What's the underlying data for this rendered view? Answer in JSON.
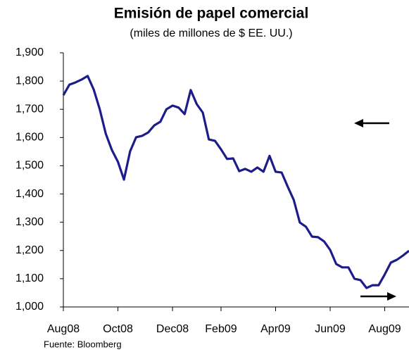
{
  "chart_data": {
    "type": "line",
    "title": "Emisión de papel comercial",
    "subtitle": "(miles de millones de $ EE. UU.)",
    "source": "Fuente: Bloomberg",
    "categories": [
      "Aug08",
      null,
      null,
      null,
      null,
      null,
      null,
      null,
      null,
      "Oct08",
      null,
      null,
      null,
      null,
      null,
      null,
      null,
      null,
      "Dec08",
      null,
      null,
      null,
      null,
      null,
      null,
      null,
      "Feb09",
      null,
      null,
      null,
      null,
      null,
      null,
      null,
      null,
      "Apr09",
      null,
      null,
      null,
      null,
      null,
      null,
      null,
      null,
      "Jun09",
      null,
      null,
      null,
      null,
      null,
      null,
      null,
      null,
      "Aug09",
      null,
      null,
      null,
      null
    ],
    "values": [
      1750,
      1787,
      1795,
      1805,
      1818,
      1770,
      1700,
      1613,
      1556,
      1514,
      1451,
      1551,
      1601,
      1606,
      1618,
      1643,
      1656,
      1700,
      1713,
      1706,
      1683,
      1768,
      1718,
      1688,
      1593,
      1588,
      1558,
      1524,
      1526,
      1481,
      1489,
      1479,
      1494,
      1479,
      1535,
      1479,
      1476,
      1426,
      1379,
      1299,
      1284,
      1249,
      1247,
      1232,
      1202,
      1152,
      1140,
      1140,
      1100,
      1095,
      1067,
      1077,
      1077,
      1115,
      1157,
      1167,
      1182,
      1199
    ],
    "color": "#1c1c8a",
    "ylim": [
      1000,
      1900
    ],
    "yticks": [
      {
        "value": 1000,
        "label": "1,000"
      },
      {
        "value": 1100,
        "label": "1,100"
      },
      {
        "value": 1200,
        "label": "1,200"
      },
      {
        "value": 1300,
        "label": "1,300"
      },
      {
        "value": 1400,
        "label": "1,400"
      },
      {
        "value": 1500,
        "label": "1,500"
      },
      {
        "value": 1600,
        "label": "1,600"
      },
      {
        "value": 1700,
        "label": "1,700"
      },
      {
        "value": 1800,
        "label": "1,800"
      },
      {
        "value": 1900,
        "label": "1,900"
      }
    ],
    "grid": false
  }
}
